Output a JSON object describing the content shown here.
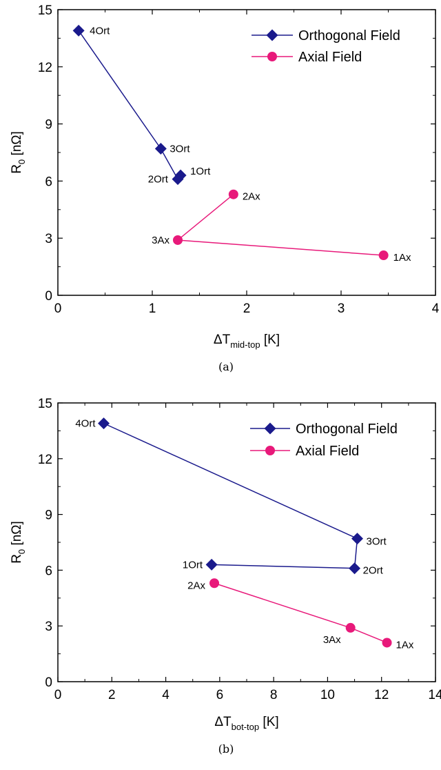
{
  "chart_data": [
    {
      "type": "line",
      "caption": "(a)",
      "xlabel": {
        "main": "ΔT",
        "sub": "mid-top",
        "unit": "[K]"
      },
      "ylabel": {
        "main": "R",
        "sub": "0",
        "unit": "[nΩ]"
      },
      "xlim": [
        0,
        4
      ],
      "ylim": [
        0,
        15
      ],
      "xticks": [
        0,
        1,
        2,
        3,
        4
      ],
      "yticks": [
        0,
        3,
        6,
        9,
        12,
        15
      ],
      "grid": false,
      "legend": "top-right",
      "series": [
        {
          "name": "Orthogonal Field",
          "color": "#1a1a8c",
          "marker": "diamond",
          "points": [
            {
              "label": "4Ort",
              "x": 0.22,
              "y": 13.9
            },
            {
              "label": "3Ort",
              "x": 1.09,
              "y": 7.7
            },
            {
              "label": "2Ort",
              "x": 1.27,
              "y": 6.1
            },
            {
              "label": "1Ort",
              "x": 1.3,
              "y": 6.3
            }
          ]
        },
        {
          "name": "Axial Field",
          "color": "#e8197a",
          "marker": "circle",
          "points": [
            {
              "label": "2Ax",
              "x": 1.86,
              "y": 5.3
            },
            {
              "label": "3Ax",
              "x": 1.27,
              "y": 2.9
            },
            {
              "label": "1Ax",
              "x": 3.45,
              "y": 2.1
            }
          ]
        }
      ]
    },
    {
      "type": "line",
      "caption": "(b)",
      "xlabel": {
        "main": "ΔT",
        "sub": "bot-top",
        "unit": "[K]"
      },
      "ylabel": {
        "main": "R",
        "sub": "0",
        "unit": "[nΩ]"
      },
      "xlim": [
        0,
        14
      ],
      "ylim": [
        0,
        15
      ],
      "xticks": [
        0,
        2,
        4,
        6,
        8,
        10,
        12,
        14
      ],
      "yticks": [
        0,
        3,
        6,
        9,
        12,
        15
      ],
      "grid": false,
      "legend": "top-right",
      "series": [
        {
          "name": "Orthogonal Field",
          "color": "#1a1a8c",
          "marker": "diamond",
          "points": [
            {
              "label": "4Ort",
              "x": 1.7,
              "y": 13.9
            },
            {
              "label": "3Ort",
              "x": 11.1,
              "y": 7.7
            },
            {
              "label": "2Ort",
              "x": 11.0,
              "y": 6.1
            },
            {
              "label": "1Ort",
              "x": 5.7,
              "y": 6.3
            }
          ]
        },
        {
          "name": "Axial Field",
          "color": "#e8197a",
          "marker": "circle",
          "points": [
            {
              "label": "2Ax",
              "x": 5.8,
              "y": 5.3
            },
            {
              "label": "3Ax",
              "x": 10.85,
              "y": 2.9
            },
            {
              "label": "1Ax",
              "x": 12.2,
              "y": 2.1
            }
          ]
        }
      ]
    }
  ]
}
